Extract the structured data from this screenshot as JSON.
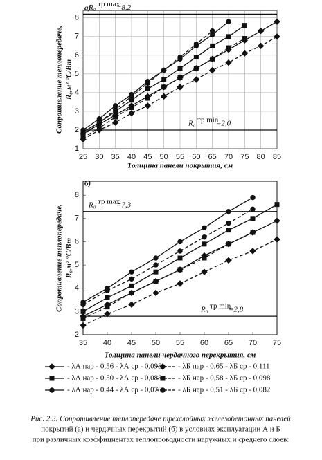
{
  "chart_data": [
    {
      "type": "line",
      "title": "а)",
      "ylabel": [
        "Сопротивление теплопередаче,",
        "R₀,м² °С/Вт"
      ],
      "xlabel": "Толщина панели покрытия, см",
      "x": [
        25,
        30,
        35,
        40,
        45,
        50,
        55,
        60,
        65,
        70,
        75,
        80,
        85
      ],
      "xlim": [
        25,
        85
      ],
      "xticks": [
        25,
        30,
        35,
        40,
        45,
        50,
        55,
        60,
        65,
        70,
        75,
        80,
        85
      ],
      "ylim": [
        1,
        8.4
      ],
      "yticks": [
        1,
        2,
        3,
        4,
        5,
        6,
        7,
        8
      ],
      "grid": true,
      "refs": [
        {
          "symbol": "R₀",
          "sup": "тр max",
          "value": 8.2,
          "label": "=8,2"
        },
        {
          "symbol": "R₀",
          "sup": "тр min",
          "value": 2.0,
          "label": "=2,0"
        }
      ],
      "series": [
        {
          "marker": "diamond",
          "dashed": false,
          "color": "#111",
          "values": [
            1.8,
            2.3,
            2.8,
            3.3,
            3.8,
            4.3,
            4.8,
            5.3,
            5.8,
            6.3,
            6.8,
            7.3,
            7.8
          ]
        },
        {
          "marker": "square",
          "dashed": false,
          "color": "#111",
          "values": [
            1.9,
            2.4,
            3.0,
            3.6,
            4.2,
            4.7,
            5.3,
            5.9,
            6.5,
            7.0,
            7.6,
            null,
            null
          ]
        },
        {
          "marker": "circle",
          "dashed": false,
          "color": "#111",
          "values": [
            2.0,
            2.6,
            3.3,
            3.9,
            4.6,
            5.2,
            5.8,
            6.5,
            7.1,
            7.8,
            null,
            null,
            null
          ]
        },
        {
          "marker": "diamond",
          "dashed": true,
          "color": "#111",
          "values": [
            1.5,
            2.0,
            2.4,
            2.9,
            3.3,
            3.8,
            4.3,
            4.7,
            5.2,
            5.6,
            6.1,
            6.5,
            7.0
          ]
        },
        {
          "marker": "square",
          "dashed": true,
          "color": "#111",
          "values": [
            1.6,
            2.1,
            2.7,
            3.2,
            3.7,
            4.3,
            4.8,
            5.3,
            5.8,
            6.4,
            6.9,
            null,
            null
          ]
        },
        {
          "marker": "circle",
          "dashed": true,
          "color": "#111",
          "values": [
            1.7,
            2.4,
            3.1,
            3.8,
            4.5,
            5.2,
            5.9,
            6.6,
            7.3,
            null,
            null,
            null,
            null
          ]
        }
      ]
    },
    {
      "type": "line",
      "title": "б)",
      "ylabel": [
        "Сопротивление теплопередаче,",
        "R₀,м² °С/Вт"
      ],
      "xlabel": "Толщина панели чердачного перекрытия, см",
      "x": [
        35,
        40,
        45,
        50,
        55,
        60,
        65,
        70,
        75
      ],
      "xlim": [
        35,
        75
      ],
      "xticks": [
        35,
        40,
        45,
        50,
        55,
        60,
        65,
        70,
        75
      ],
      "ylim": [
        2,
        8.6
      ],
      "yticks": [
        2,
        3,
        4,
        5,
        6,
        7,
        8
      ],
      "grid": false,
      "refs": [
        {
          "symbol": "R₀",
          "sup": "тр max",
          "value": 7.3,
          "label": "=7,3"
        },
        {
          "symbol": "R₀",
          "sup": "тр min",
          "value": 2.8,
          "label": "=2,8"
        }
      ],
      "series": [
        {
          "name": "- λА нар - 0,56 - λА ср - 0,098",
          "marker": "diamond",
          "dashed": false,
          "color": "#111",
          "values": [
            2.8,
            3.3,
            3.8,
            4.3,
            4.8,
            5.4,
            5.9,
            6.4,
            6.9
          ]
        },
        {
          "name": "- λА нар - 0,50 - λА ср - 0,088",
          "marker": "square",
          "dashed": false,
          "color": "#111",
          "values": [
            3.0,
            3.6,
            4.1,
            4.7,
            5.3,
            5.9,
            6.5,
            7.0,
            7.6
          ]
        },
        {
          "name": "- λА нар - 0,44 - λА ср - 0,078",
          "marker": "circle",
          "dashed": false,
          "color": "#111",
          "values": [
            3.4,
            4.0,
            4.7,
            5.3,
            6.0,
            6.6,
            7.3,
            7.9,
            null
          ]
        },
        {
          "name": "- λБ нар - 0,65 - λБ ср - 0,111",
          "marker": "diamond",
          "dashed": true,
          "color": "#111",
          "values": [
            2.4,
            2.9,
            3.3,
            3.8,
            4.2,
            4.7,
            5.2,
            5.6,
            6.1
          ]
        },
        {
          "name": "- λБ нар - 0,58 - λБ ср - 0,098",
          "marker": "square",
          "dashed": true,
          "color": "#111",
          "values": [
            2.7,
            3.2,
            3.8,
            4.3,
            4.8,
            5.3,
            5.9,
            6.4,
            null
          ]
        },
        {
          "name": "- λБ нар - 0,51 - λБ ср - 0,082",
          "marker": "circle",
          "dashed": true,
          "color": "#111",
          "values": [
            3.3,
            3.9,
            4.4,
            5.0,
            5.6,
            6.2,
            6.8,
            7.4,
            null
          ]
        }
      ]
    }
  ],
  "caption": [
    "Рис. 2.3. Сопротивление теплопередаче трехслойных железобетонных панелей",
    "покрытий (а) и чердачных перекрытий (б) в условиях эксплуатации А и Б",
    "при различных коэффициентах теплопроводности наружных и среднего слоев:"
  ]
}
